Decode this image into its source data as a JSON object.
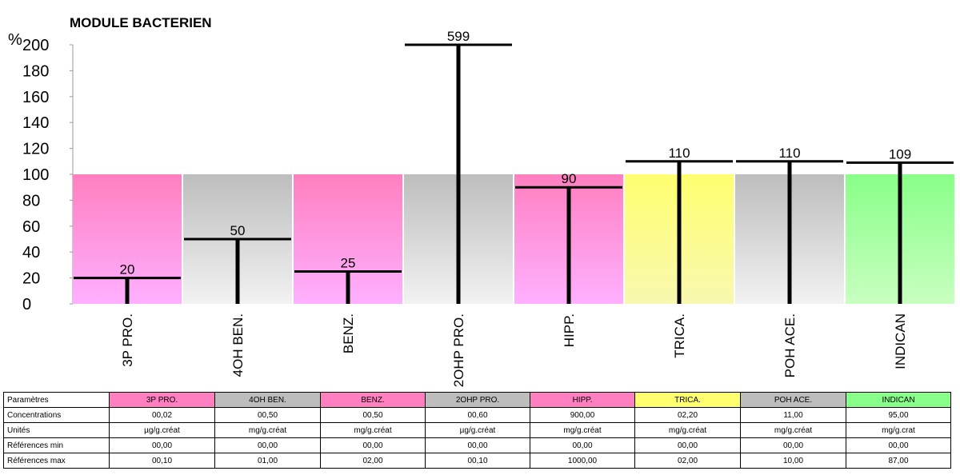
{
  "chart_data": {
    "type": "bar",
    "title": "MODULE BACTERIEN",
    "ylabel": "%",
    "ylim": [
      0,
      200
    ],
    "yticks": [
      0,
      20,
      40,
      60,
      80,
      100,
      120,
      140,
      160,
      180,
      200
    ],
    "reference_level": 100,
    "categories": [
      "3P PRO.",
      "4OH BEN.",
      "BENZ.",
      "2OHP PRO.",
      "HIPP.",
      "TRICA.",
      "POH ACE.",
      "INDICAN"
    ],
    "values": [
      20,
      50,
      25,
      599,
      90,
      110,
      110,
      109
    ],
    "value_labels": [
      "20",
      "50",
      "25",
      "599",
      "90",
      "110",
      "110",
      "109"
    ],
    "category_colors": [
      "pink",
      "gray",
      "pink",
      "gray",
      "pink",
      "yellow",
      "gray",
      "green"
    ],
    "colors": {
      "pink": [
        "#ff7fc0",
        "#ffb0ff"
      ],
      "gray": [
        "#bdbdbd",
        "#f2f2f2"
      ],
      "yellow": [
        "#ffff70",
        "#f8f8b0"
      ],
      "green": [
        "#88ff88",
        "#c8ffc0"
      ]
    }
  },
  "table": {
    "header_label": "Paramètres",
    "rows": [
      {
        "label": "Concentrations",
        "values": [
          "00,02",
          "00,50",
          "00,50",
          "00,60",
          "900,00",
          "02,20",
          "11,00",
          "95,00"
        ]
      },
      {
        "label": "Unités",
        "values": [
          "µg/g.créat",
          "mg/g.créat",
          "mg/g.créat",
          "µg/g.créat",
          "mg/g.créat",
          "mg/g.créat",
          "mg/g.créat",
          "mg/g.crat"
        ]
      },
      {
        "label": "Références min",
        "values": [
          "00,00",
          "00,00",
          "00,00",
          "00,00",
          "00,00",
          "00,00",
          "00,00",
          "00,00"
        ]
      },
      {
        "label": "Références max",
        "values": [
          "00,10",
          "01,00",
          "02,00",
          "00,10",
          "1000,00",
          "02,00",
          "10,00",
          "87,00"
        ]
      }
    ]
  }
}
